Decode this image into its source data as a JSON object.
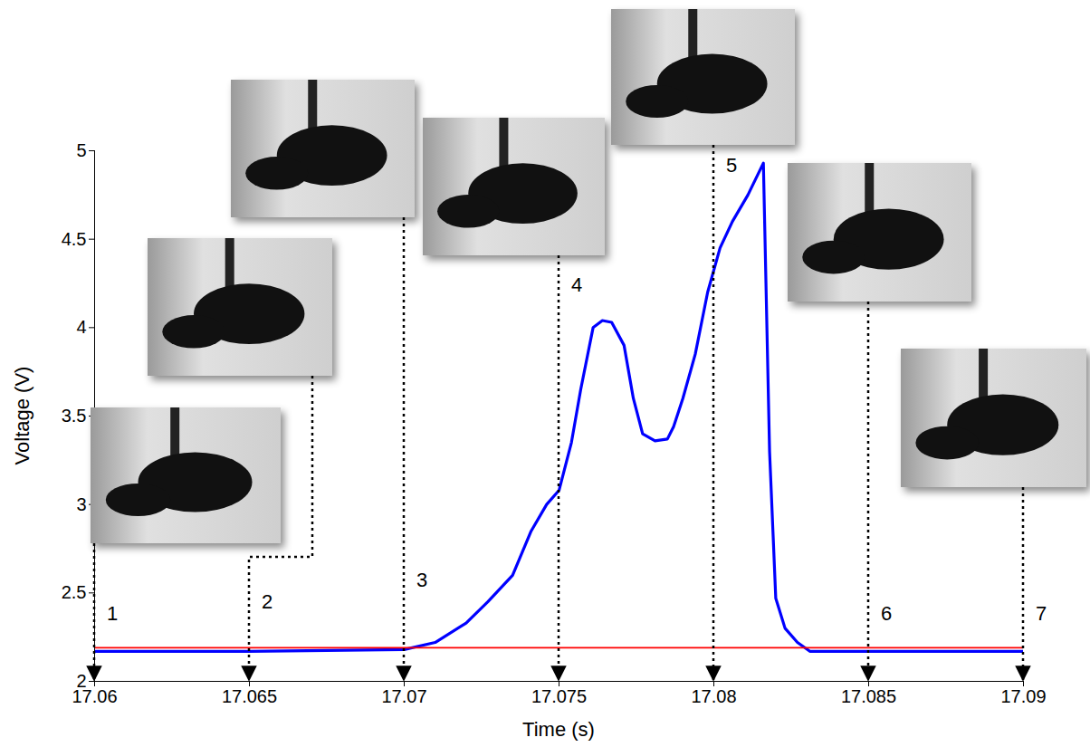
{
  "chart_data": {
    "type": "line",
    "x_label": "Time (s)",
    "y_label": "Voltage (V)",
    "x": [
      17.06,
      17.065,
      17.07,
      17.071,
      17.072,
      17.0727,
      17.0735,
      17.0741,
      17.0746,
      17.075,
      17.0754,
      17.0757,
      17.0761,
      17.0764,
      17.0767,
      17.0771,
      17.0774,
      17.0777,
      17.0781,
      17.0785,
      17.0787,
      17.079,
      17.0794,
      17.0798,
      17.0802,
      17.0806,
      17.0811,
      17.0816,
      17.0818,
      17.082,
      17.0823,
      17.0827,
      17.0831,
      17.085,
      17.09
    ],
    "series": [
      {
        "color": "#0000ff",
        "values": [
          2.17,
          2.17,
          2.18,
          2.22,
          2.33,
          2.45,
          2.6,
          2.85,
          3.0,
          3.08,
          3.35,
          3.65,
          4.0,
          4.04,
          4.03,
          3.9,
          3.6,
          3.4,
          3.36,
          3.37,
          3.44,
          3.6,
          3.85,
          4.2,
          4.45,
          4.6,
          4.75,
          4.93,
          3.3,
          2.47,
          2.3,
          2.22,
          2.17,
          2.17,
          2.17
        ]
      },
      {
        "color": "#ff0000",
        "values": [
          2.19,
          2.19,
          2.19,
          2.19,
          2.19,
          2.19,
          2.19,
          2.19,
          2.19,
          2.19,
          2.19,
          2.19,
          2.19,
          2.19,
          2.19,
          2.19,
          2.19,
          2.19,
          2.19,
          2.19,
          2.19,
          2.19,
          2.19,
          2.19,
          2.19,
          2.19,
          2.19,
          2.19,
          2.19,
          2.19,
          2.19,
          2.19,
          2.19,
          2.19,
          2.19
        ]
      }
    ],
    "xlim": [
      17.06,
      17.09
    ],
    "xticks": [
      17.06,
      17.065,
      17.07,
      17.075,
      17.08,
      17.085,
      17.09
    ],
    "ylim": [
      2,
      5
    ],
    "yticks": [
      2,
      2.5,
      3,
      3.5,
      4,
      4.5,
      5
    ],
    "grid": false,
    "annotations": [
      {
        "text": "1",
        "x": 17.06
      },
      {
        "text": "2",
        "x": 17.065
      },
      {
        "text": "3",
        "x": 17.07
      },
      {
        "text": "4",
        "x": 17.075
      },
      {
        "text": "5",
        "x": 17.08
      },
      {
        "text": "6",
        "x": 17.085
      },
      {
        "text": "7",
        "x": 17.09
      }
    ]
  }
}
